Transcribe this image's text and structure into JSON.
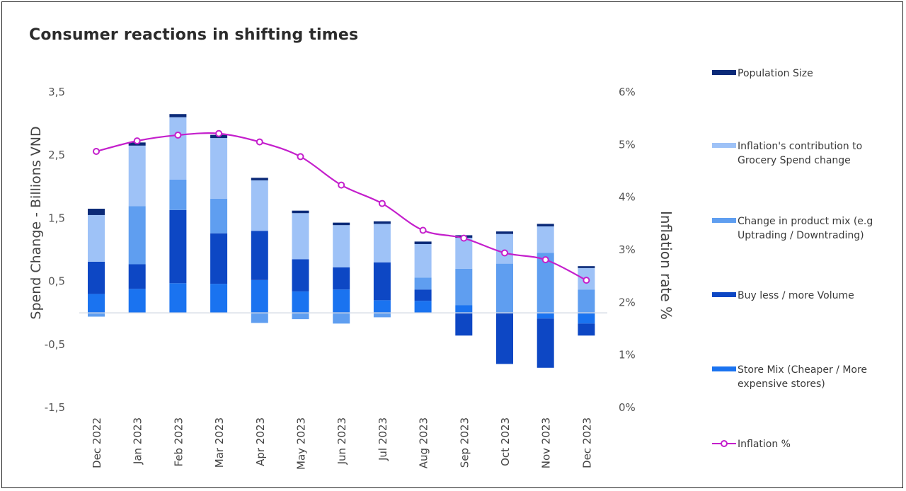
{
  "chart_data": {
    "type": "bar",
    "title": "Consumer reactions in shifting times",
    "ylabel": "Spend Change - Billions VND",
    "y2label": "Inflation rate %",
    "ylim": [
      -1.5,
      3.5
    ],
    "y2lim": [
      0,
      6
    ],
    "yticks": [
      "3,5",
      "2,5",
      "1,5",
      "0,5",
      "-0,5",
      "-1,5"
    ],
    "ytick_values": [
      3.5,
      2.5,
      1.5,
      0.5,
      -0.5,
      -1.5
    ],
    "y2ticks": [
      "6%",
      "5%",
      "4%",
      "3%",
      "2%",
      "1%",
      "0%"
    ],
    "y2tick_values": [
      6,
      5,
      4,
      3,
      2,
      1,
      0
    ],
    "categories": [
      "Dec 2022",
      "Jan 2023",
      "Feb 2023",
      "Mar 2023",
      "Apr 2023",
      "May 2023",
      "Jun 2023",
      "Jul 2023",
      "Aug 2023",
      "Sep 2023",
      "Oct 2023",
      "Nov 2023",
      "Dec 2023"
    ],
    "stacked": true,
    "series": [
      {
        "name": "Store Mix (Cheaper / More expensive stores)",
        "color": "#1a73f0",
        "values": [
          0.3,
          0.38,
          0.47,
          0.46,
          0.52,
          0.34,
          0.37,
          0.2,
          0.19,
          0.12,
          0.0,
          -0.09,
          -0.17
        ]
      },
      {
        "name": "Buy less / more Volume",
        "color": "#0d47c4",
        "values": [
          0.51,
          0.39,
          1.16,
          0.8,
          0.78,
          0.51,
          0.35,
          0.6,
          0.18,
          -0.36,
          -0.81,
          -0.78,
          -0.19
        ]
      },
      {
        "name": "Change in product mix (e.g Uptrading / Downtrading)",
        "color": "#5f9ef0",
        "values": [
          -0.06,
          0.92,
          0.48,
          0.55,
          -0.16,
          -0.1,
          -0.17,
          -0.07,
          0.19,
          0.58,
          0.78,
          0.95,
          0.37
        ]
      },
      {
        "name": "Inflation's contribution to Grocery Spend change",
        "color": "#9ec2f7",
        "values": [
          0.74,
          0.96,
          0.99,
          0.96,
          0.8,
          0.73,
          0.67,
          0.61,
          0.53,
          0.49,
          0.47,
          0.42,
          0.34
        ]
      },
      {
        "name": "Population Size",
        "color": "#0b2a78",
        "values": [
          0.1,
          0.05,
          0.05,
          0.05,
          0.04,
          0.04,
          0.04,
          0.04,
          0.04,
          0.04,
          0.04,
          0.04,
          0.03
        ]
      }
    ],
    "line": {
      "name": "Inflation %",
      "color": "#c41fcc",
      "axis": "y2",
      "values": [
        4.87,
        5.07,
        5.18,
        5.21,
        5.05,
        4.77,
        4.23,
        3.88,
        3.37,
        3.22,
        2.94,
        2.81,
        2.42
      ]
    },
    "legend_position": "right"
  }
}
